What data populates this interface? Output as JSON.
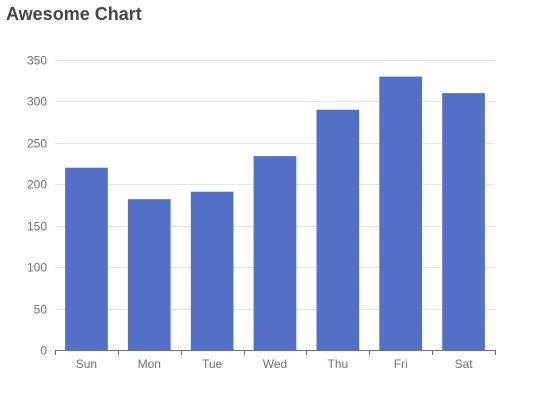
{
  "chart_data": {
    "type": "bar",
    "title": "Awesome Chart",
    "categories": [
      "Sun",
      "Mon",
      "Tue",
      "Wed",
      "Thu",
      "Fri",
      "Sat"
    ],
    "values": [
      220,
      182,
      191,
      234,
      290,
      330,
      310
    ],
    "xlabel": "",
    "ylabel": "",
    "ylim": [
      0,
      350
    ],
    "yticks": [
      0,
      50,
      100,
      150,
      200,
      250,
      300,
      350
    ],
    "grid": true,
    "bar_color": "#5470c6",
    "grid_color": "#e0e6f1",
    "axis_color": "#6e7079"
  }
}
